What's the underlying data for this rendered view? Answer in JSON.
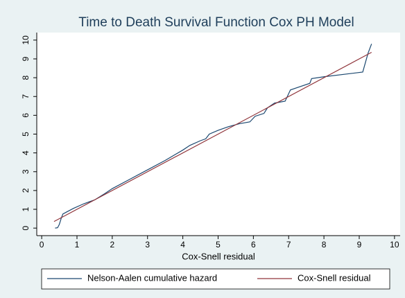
{
  "chart_data": {
    "type": "line",
    "title": "Time to Death Survival Function Cox PH Model",
    "x_label": "Cox-Snell residual",
    "xlim": [
      -0.14,
      10.16
    ],
    "ylim": [
      -0.4,
      10.4
    ],
    "xticks": [
      0,
      1,
      2,
      3,
      4,
      5,
      6,
      7,
      8,
      9,
      10
    ],
    "yticks": [
      0,
      1,
      2,
      3,
      4,
      5,
      6,
      7,
      8,
      9,
      10
    ],
    "legend": "bottom",
    "series": [
      {
        "name": "Nelson-Aalen cumulative hazard",
        "color": "#1a476f",
        "x": [
          0.38,
          0.45,
          0.5,
          0.55,
          0.6,
          0.7,
          0.9,
          1.2,
          1.5,
          1.8,
          2.0,
          2.5,
          3.0,
          3.5,
          4.0,
          4.2,
          4.5,
          4.65,
          4.75,
          5.0,
          5.3,
          5.6,
          5.9,
          6.05,
          6.3,
          6.4,
          6.6,
          6.9,
          7.05,
          7.6,
          7.65,
          8.0,
          9.1,
          9.25,
          9.35
        ],
        "values": [
          0,
          0.02,
          0.2,
          0.5,
          0.75,
          0.85,
          1.05,
          1.3,
          1.5,
          1.85,
          2.1,
          2.6,
          3.1,
          3.6,
          4.15,
          4.4,
          4.65,
          4.75,
          5.0,
          5.2,
          5.4,
          5.55,
          5.65,
          5.95,
          6.1,
          6.4,
          6.65,
          6.75,
          7.35,
          7.7,
          7.95,
          8.05,
          8.3,
          9.3,
          9.8
        ]
      },
      {
        "name": "Cox-Snell residual",
        "color": "#90353b",
        "x": [
          0.35,
          9.35
        ],
        "values": [
          0.35,
          9.35
        ]
      }
    ]
  }
}
